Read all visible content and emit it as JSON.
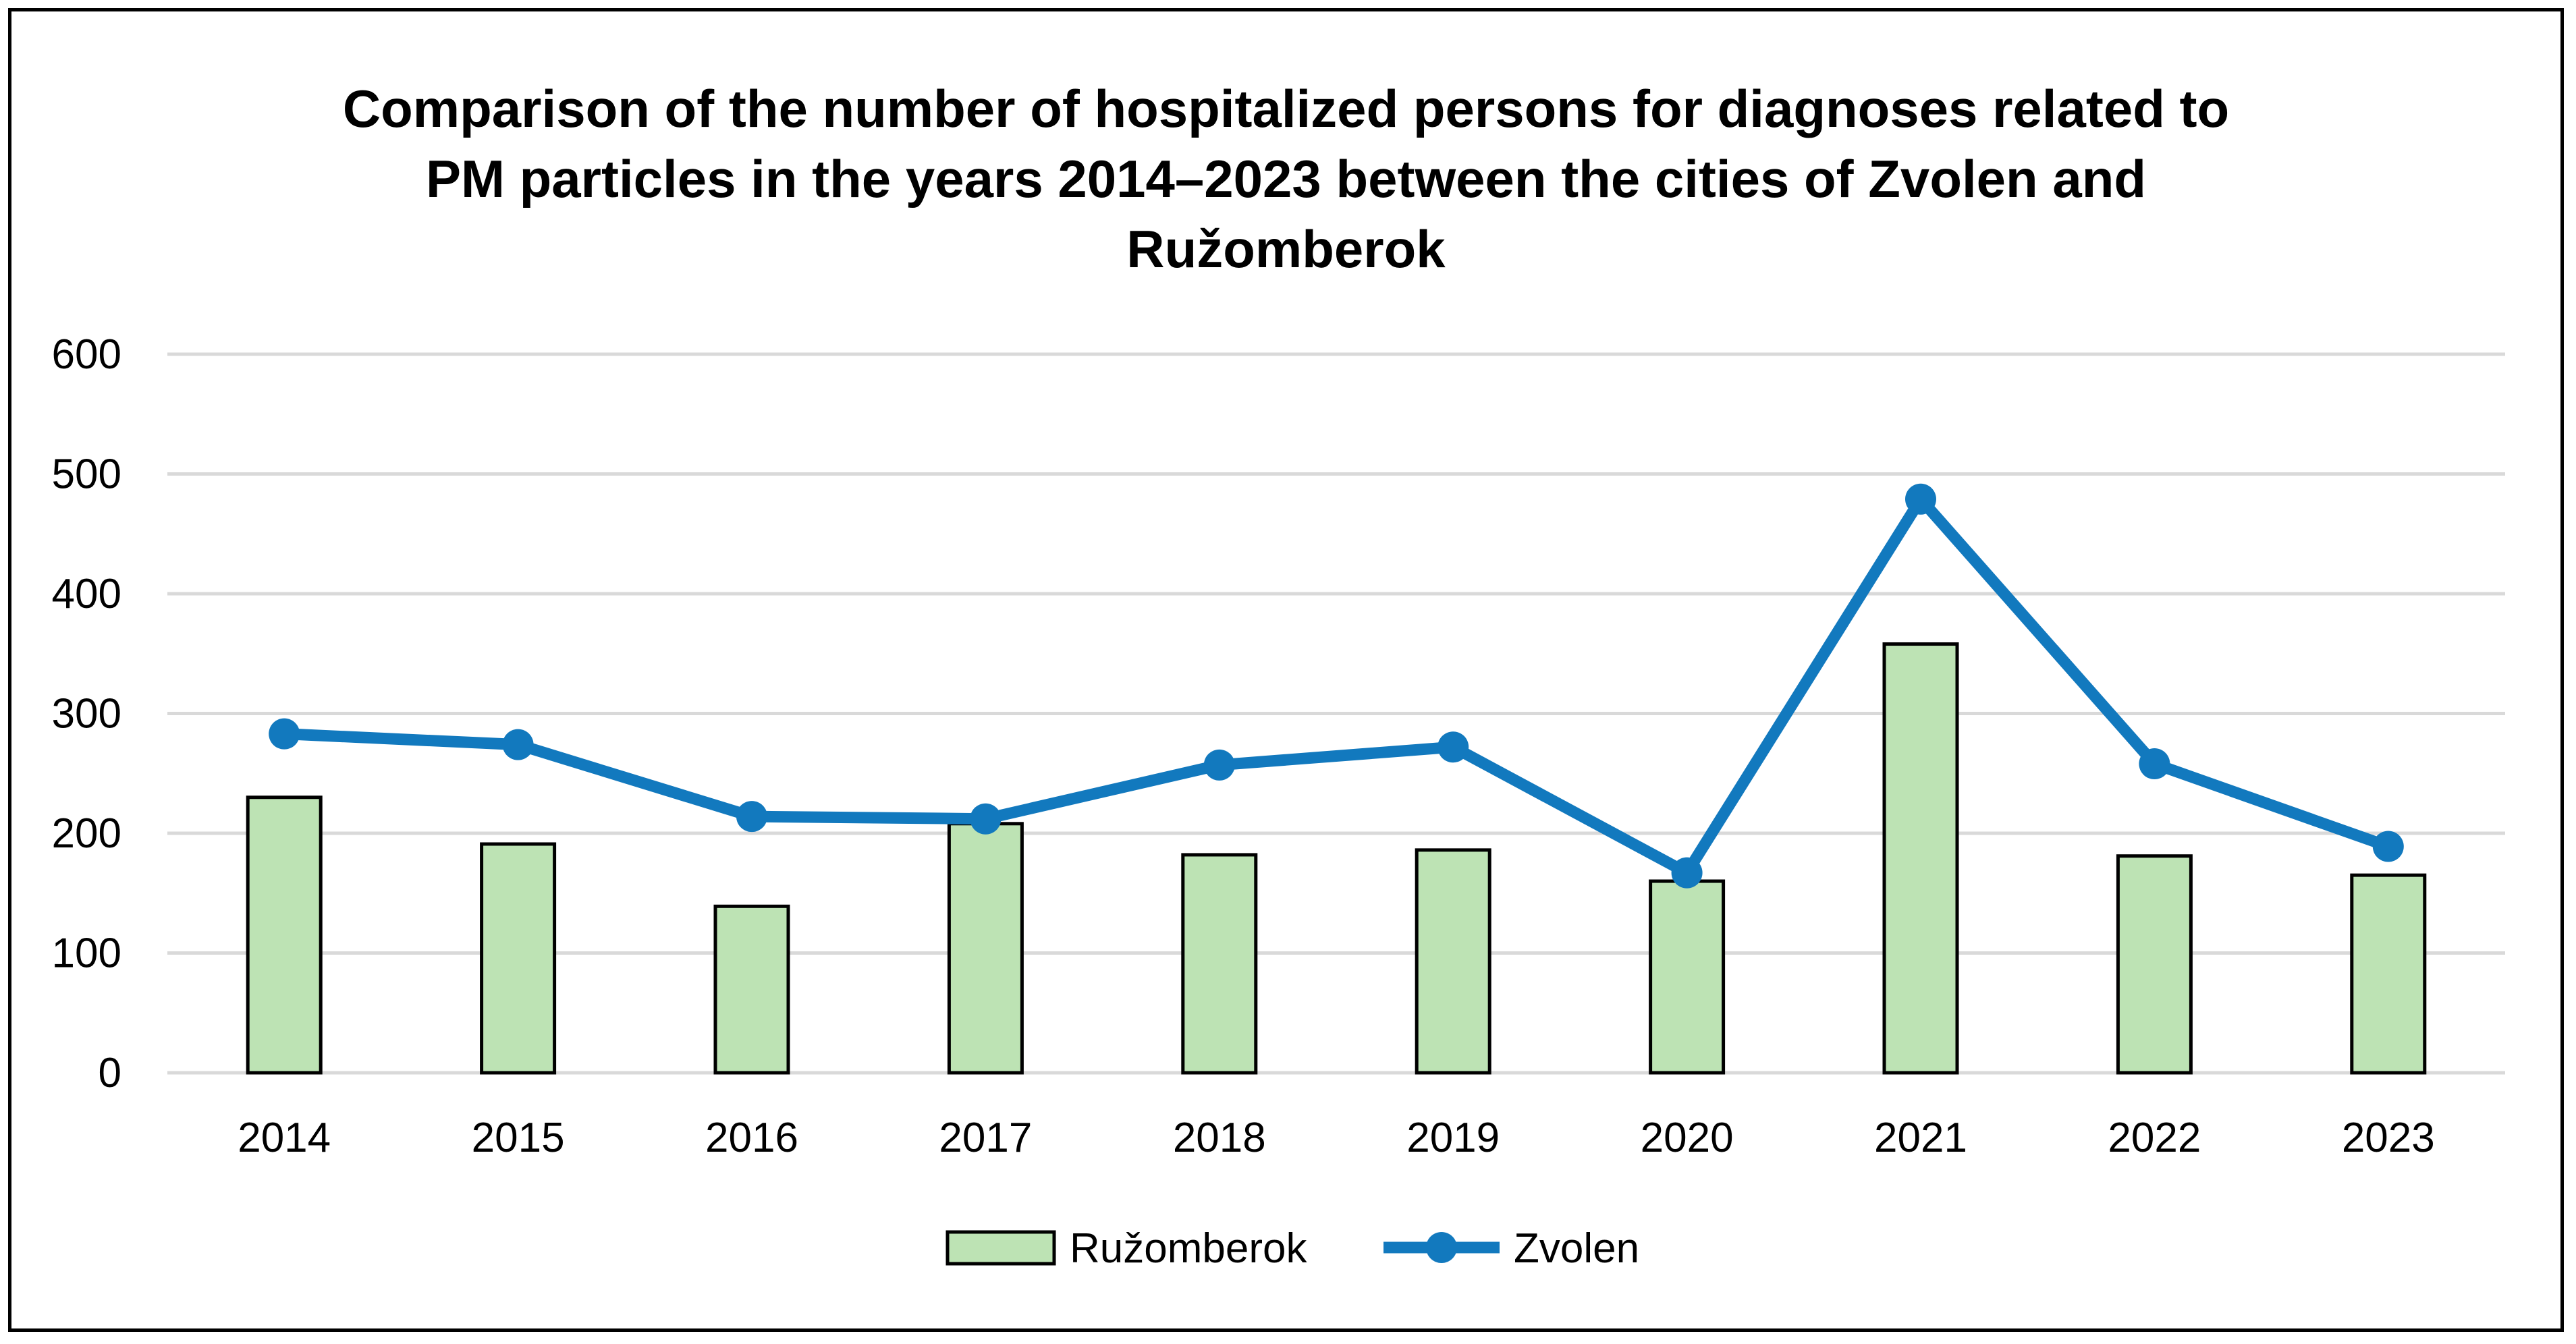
{
  "chart_data": {
    "type": "bar",
    "title_lines": [
      "Comparison of the number of hospitalized persons for diagnoses related to",
      "PM particles in the years 2014–2023 between the cities of Zvolen and",
      "Ružomberok"
    ],
    "categories": [
      "2014",
      "2015",
      "2016",
      "2017",
      "2018",
      "2019",
      "2020",
      "2021",
      "2022",
      "2023"
    ],
    "series": [
      {
        "name": "Ružomberok",
        "type": "bar",
        "values": [
          230,
          191,
          139,
          208,
          182,
          186,
          160,
          358,
          181,
          165
        ]
      },
      {
        "name": "Zvolen",
        "type": "line",
        "values": [
          283,
          274,
          214,
          212,
          257,
          272,
          167,
          479,
          258,
          189
        ]
      }
    ],
    "ylim": [
      0,
      600
    ],
    "yticks": [
      0,
      100,
      200,
      300,
      400,
      500,
      600
    ],
    "grid": true,
    "legend_position": "bottom",
    "colors": {
      "bar_fill": "#bde3b4",
      "bar_stroke": "#000000",
      "line": "#1279be",
      "grid": "#d9d9d9"
    }
  }
}
